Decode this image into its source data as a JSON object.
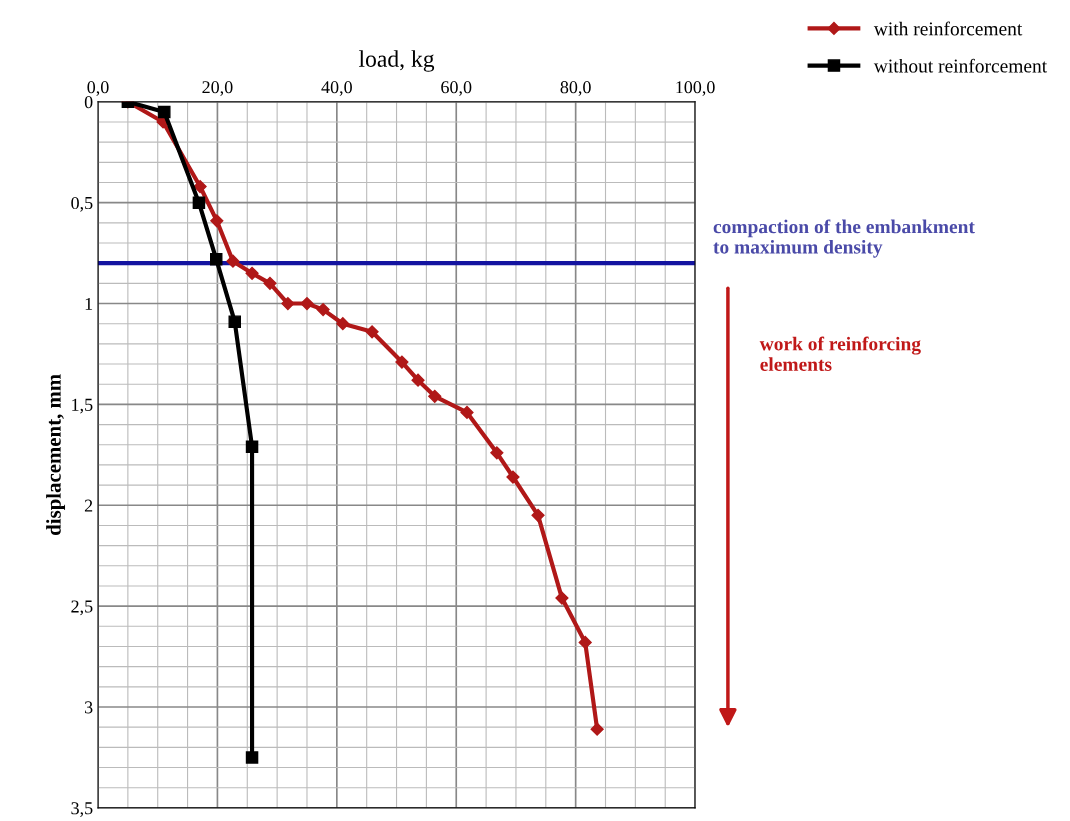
{
  "chart_data": {
    "type": "line",
    "xlabel": "load, kg",
    "ylabel": "displacement, mm",
    "xlim": [
      0,
      100
    ],
    "xticks": [
      {
        "value": 0,
        "label": "0,0"
      },
      {
        "value": 20,
        "label": "20,0"
      },
      {
        "value": 40,
        "label": "40,0"
      },
      {
        "value": 60,
        "label": "60,0"
      },
      {
        "value": 80,
        "label": "80,0"
      },
      {
        "value": 100,
        "label": "100,0"
      }
    ],
    "ylim": [
      3.5,
      0
    ],
    "yticks": [
      0,
      {
        "value": 0.5,
        "label": "0,5"
      },
      1,
      {
        "value": 1.5,
        "label": "1,5"
      },
      2,
      {
        "value": 2.5,
        "label": "2,5"
      },
      3,
      {
        "value": 3.5,
        "label": "3,5"
      }
    ],
    "series": [
      {
        "name": "with reinforcement",
        "color": "#b01818",
        "marker": "diamond",
        "x": [
          5,
          10.9,
          17.1,
          19.9,
          22.6,
          25.8,
          28.8,
          31.8,
          35.0,
          37.7,
          41.0,
          45.9,
          50.9,
          53.6,
          56.4,
          61.8,
          66.8,
          69.5,
          73.7,
          77.7,
          81.6,
          83.6
        ],
        "values": [
          0,
          0.1,
          0.42,
          0.59,
          0.79,
          0.85,
          0.9,
          1.0,
          1.0,
          1.03,
          1.1,
          1.14,
          1.29,
          1.38,
          1.46,
          1.54,
          1.74,
          1.86,
          2.05,
          2.46,
          2.68,
          3.11
        ]
      },
      {
        "name": "without reinforcement",
        "color": "#000000",
        "marker": "square",
        "x": [
          5,
          11.1,
          16.9,
          19.8,
          22.9,
          25.8,
          25.8
        ],
        "values": [
          0,
          0.05,
          0.5,
          0.78,
          1.09,
          1.71,
          3.25
        ]
      }
    ],
    "ref_lines": [
      {
        "axis": "y",
        "value": 0.8,
        "label": "compaction of the embankment\nto maximum density",
        "color": "#1414a0"
      }
    ],
    "annotations": [
      "work of reinforcing\nelements"
    ],
    "grid": true,
    "legend": "top right"
  }
}
